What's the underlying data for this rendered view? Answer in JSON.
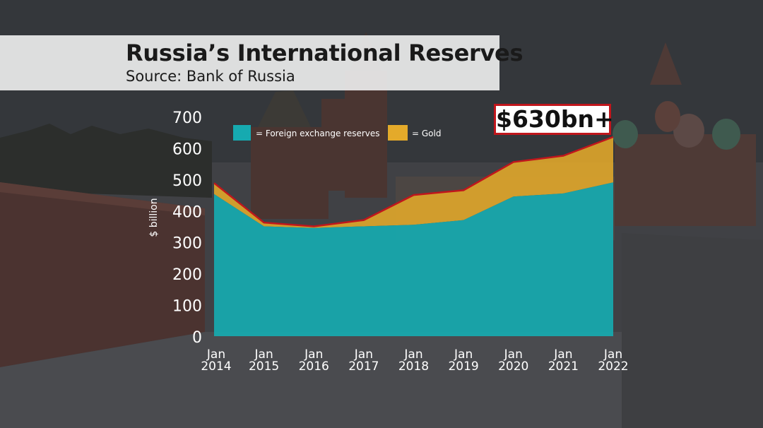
{
  "title": "Russia’s International Reserves",
  "subtitle": "Source: Bank of Russia",
  "callout": "$630bn+",
  "colors": {
    "foreign_exchange": "#16aab0",
    "gold": "#e4aa2a",
    "total_line": "#c0161c",
    "callout_border": "#c0161c"
  },
  "chart_data": {
    "type": "area",
    "stacked": true,
    "ylabel": "$ billion",
    "ylim": [
      0,
      700
    ],
    "yticks": [
      "0",
      "100",
      "200",
      "300",
      "400",
      "500",
      "600",
      "700"
    ],
    "x_labels": [
      [
        "Jan",
        "2014"
      ],
      [
        "Jan",
        "2015"
      ],
      [
        "Jan",
        "2016"
      ],
      [
        "Jan",
        "2017"
      ],
      [
        "Jan",
        "2018"
      ],
      [
        "Jan",
        "2019"
      ],
      [
        "Jan",
        "2020"
      ],
      [
        "Jan",
        "2021"
      ],
      [
        "Jan",
        "2022"
      ]
    ],
    "series": [
      {
        "name": "= Foreign exchange reserves",
        "color": "#16aab0",
        "values": [
          453,
          350,
          345,
          350,
          355,
          370,
          445,
          455,
          490
        ]
      },
      {
        "name": "= Gold",
        "color": "#e4aa2a",
        "values": [
          35,
          12,
          5,
          20,
          95,
          95,
          110,
          120,
          145
        ]
      }
    ],
    "legend_position": "top-left",
    "grid": false
  }
}
